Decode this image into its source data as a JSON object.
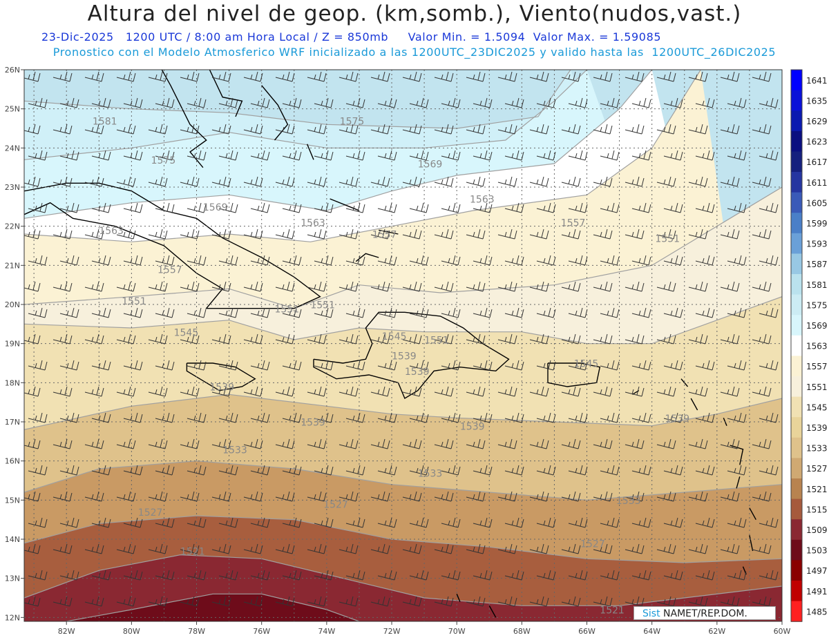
{
  "header": {
    "title": "Altura del nivel de geop. (km,somb.), Viento(nudos,vast.)",
    "line1": "23-Dic-2025   1200 UTC / 8:00 am Hora Local / Z = 850mb     Valor Min. = 1.5094  Valor Max. = 1.59085",
    "line2": "Pronostico con el Modelo Atmosferico WRF inicializado a las 1200UTC_23DIC2025 y valido hasta las  1200UTC_26DIC2025"
  },
  "map": {
    "lon_labels": [
      "82W",
      "80W",
      "78W",
      "76W",
      "74W",
      "72W",
      "70W",
      "68W",
      "66W",
      "64W",
      "62W",
      "60W"
    ],
    "lat_labels": [
      "12N",
      "13N",
      "14N",
      "15N",
      "16N",
      "17N",
      "18N",
      "19N",
      "20N",
      "21N",
      "22N",
      "23N",
      "24N",
      "25N",
      "26N"
    ],
    "contour_labels": [
      {
        "text": "1581",
        "lon": -81.2,
        "lat": 24.6
      },
      {
        "text": "1575",
        "lon": -79.4,
        "lat": 23.6
      },
      {
        "text": "1575",
        "lon": -73.6,
        "lat": 24.6
      },
      {
        "text": "1569",
        "lon": -71.2,
        "lat": 23.5
      },
      {
        "text": "1569",
        "lon": -77.8,
        "lat": 22.4
      },
      {
        "text": "1563",
        "lon": -81.0,
        "lat": 21.8
      },
      {
        "text": "1563",
        "lon": -74.8,
        "lat": 22.0
      },
      {
        "text": "1563",
        "lon": -69.6,
        "lat": 22.6
      },
      {
        "text": "1557",
        "lon": -79.2,
        "lat": 20.8
      },
      {
        "text": "1557",
        "lon": -72.6,
        "lat": 21.7
      },
      {
        "text": "1557",
        "lon": -66.8,
        "lat": 22.0
      },
      {
        "text": "1551",
        "lon": -80.3,
        "lat": 20.0
      },
      {
        "text": "1551",
        "lon": -75.6,
        "lat": 19.8
      },
      {
        "text": "1551",
        "lon": -74.5,
        "lat": 19.9
      },
      {
        "text": "1551",
        "lon": -71.0,
        "lat": 19.0
      },
      {
        "text": "1551",
        "lon": -63.9,
        "lat": 21.6
      },
      {
        "text": "1545",
        "lon": -78.7,
        "lat": 19.2
      },
      {
        "text": "1545",
        "lon": -72.3,
        "lat": 19.1
      },
      {
        "text": "1545",
        "lon": -66.4,
        "lat": 18.4
      },
      {
        "text": "1539",
        "lon": -77.6,
        "lat": 17.8
      },
      {
        "text": "1539",
        "lon": -72.0,
        "lat": 18.6
      },
      {
        "text": "1539",
        "lon": -71.6,
        "lat": 18.2
      },
      {
        "text": "1539",
        "lon": -74.8,
        "lat": 16.9
      },
      {
        "text": "1539",
        "lon": -69.9,
        "lat": 16.8
      },
      {
        "text": "1539",
        "lon": -63.6,
        "lat": 17.0
      },
      {
        "text": "1533",
        "lon": -77.2,
        "lat": 16.2
      },
      {
        "text": "1533",
        "lon": -71.2,
        "lat": 15.6
      },
      {
        "text": "1533",
        "lon": -65.1,
        "lat": 14.9
      },
      {
        "text": "1527",
        "lon": -79.8,
        "lat": 14.6
      },
      {
        "text": "1527",
        "lon": -74.1,
        "lat": 14.8
      },
      {
        "text": "1527",
        "lon": -66.2,
        "lat": 13.8
      },
      {
        "text": "1521",
        "lon": -78.5,
        "lat": 13.6
      },
      {
        "text": "1521",
        "lon": -65.6,
        "lat": 12.1
      }
    ]
  },
  "colorbar": {
    "labels": [
      "1641",
      "1635",
      "1629",
      "1623",
      "1617",
      "1611",
      "1605",
      "1599",
      "1593",
      "1587",
      "1581",
      "1575",
      "1569",
      "1563",
      "1557",
      "1551",
      "1545",
      "1539",
      "1533",
      "1527",
      "1521",
      "1515",
      "1509",
      "1503",
      "1497",
      "1491",
      "1485"
    ],
    "colors": [
      "#0000ff",
      "#0a12d8",
      "#0a1ab0",
      "#0a0f80",
      "#15207e",
      "#2535a0",
      "#3a5ab8",
      "#4a7fc8",
      "#6aa0d8",
      "#98c8e4",
      "#bae2ee",
      "#ccecf4",
      "#d8f6fc",
      "#ffffff",
      "#fbf2d4",
      "#f7f0dc",
      "#f1e1b3",
      "#e9d49a",
      "#dfc28b",
      "#d0a972",
      "#b8834f",
      "#a65a3c",
      "#8a2832",
      "#6e0c1a",
      "#8a0000",
      "#c00000",
      "#ff2020"
    ]
  },
  "credit": {
    "part1": "Sist",
    "part2": "NAMET/REP.DOM."
  }
}
